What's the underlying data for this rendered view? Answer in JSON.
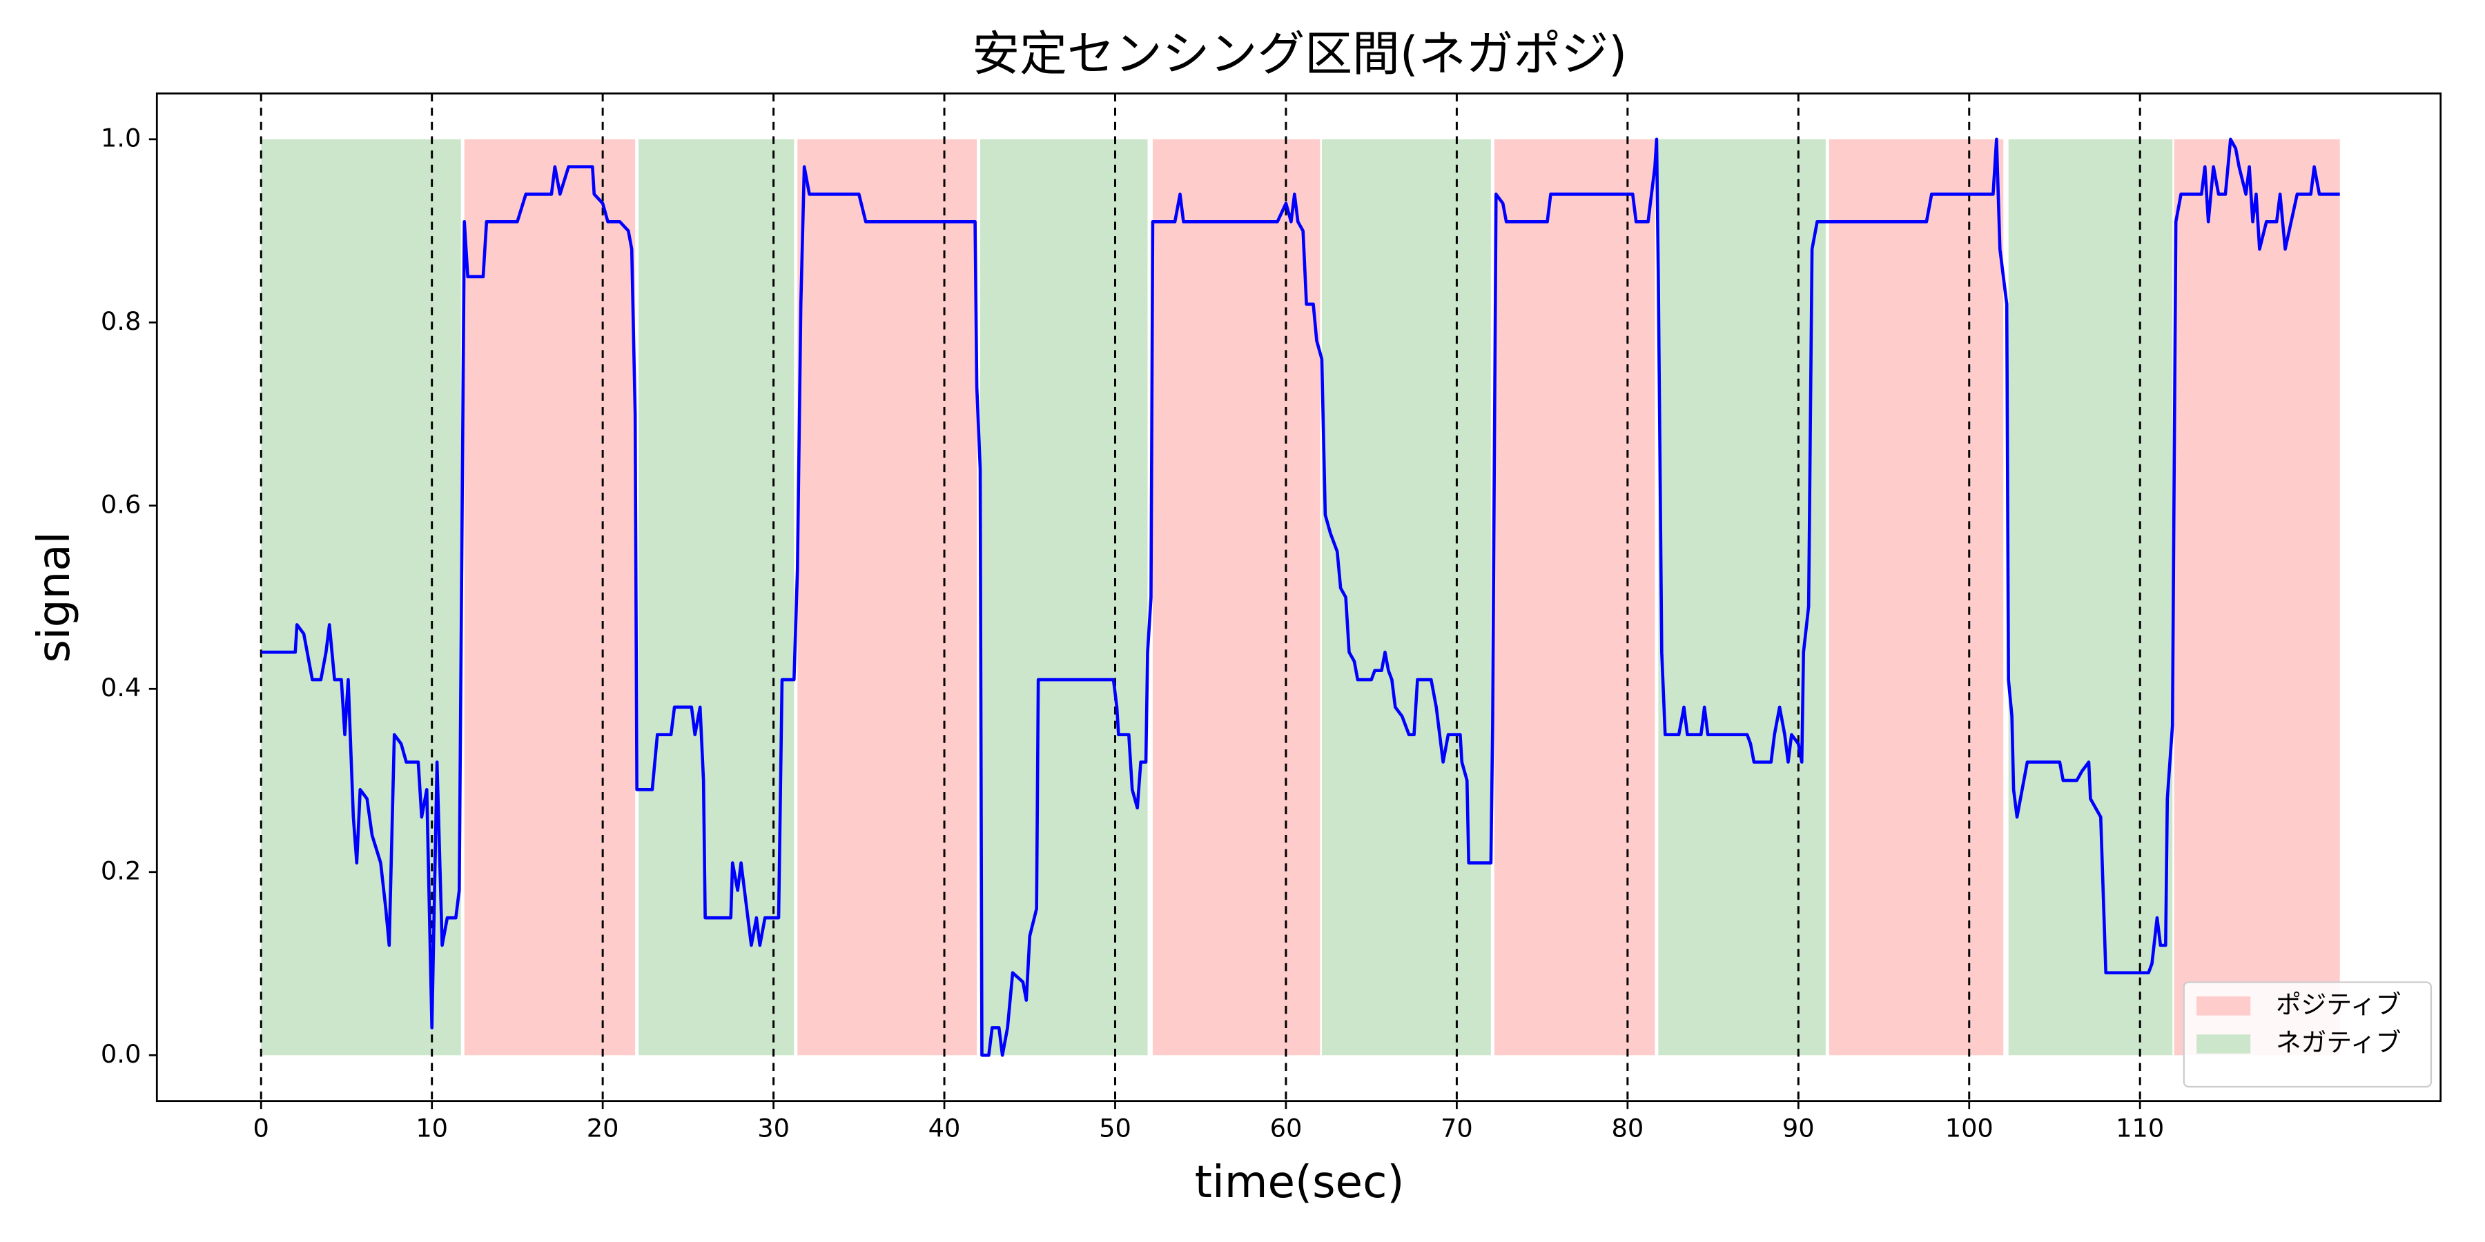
{
  "chart_data": {
    "type": "line",
    "title": "安定センシング区間(ネガポジ)",
    "xlabel": "time(sec)",
    "ylabel": "signal",
    "color": "#0000ff",
    "xlim": [
      -6.1,
      127.6
    ],
    "ylim": [
      -0.05,
      1.05
    ],
    "xticks": [
      0,
      10,
      20,
      30,
      40,
      50,
      60,
      70,
      80,
      90,
      100,
      110
    ],
    "yticks": [
      {
        "value": 0,
        "label": "0.0"
      },
      0.2,
      0.4,
      0.6,
      0.8,
      {
        "value": 1,
        "label": "1.0"
      }
    ],
    "vlines": [
      0,
      10,
      20,
      30,
      40,
      50,
      60,
      70,
      80,
      90,
      100,
      110
    ],
    "span_y": [
      0,
      1
    ],
    "spans": [
      {
        "name": "ポジティブ",
        "color": "#ffcccc",
        "ranges": [
          [
            11.9,
            21.9
          ],
          [
            31.4,
            41.9
          ],
          [
            52.2,
            62.0
          ],
          [
            72.2,
            81.6
          ],
          [
            91.8,
            102.0
          ],
          [
            112.0,
            121.7
          ]
        ]
      },
      {
        "name": "ネガティブ",
        "color": "#cce6cc",
        "ranges": [
          [
            0,
            11.7
          ],
          [
            22.1,
            31.2
          ],
          [
            42.1,
            51.9
          ],
          [
            62.1,
            72.0
          ],
          [
            81.8,
            91.6
          ],
          [
            102.3,
            111.9
          ]
        ]
      }
    ],
    "legend": "lower right",
    "x": [
      0,
      2,
      2.1,
      2.5,
      3,
      3.5,
      3.8,
      4,
      4.3,
      4.7,
      4.9,
      5.1,
      5.4,
      5.6,
      5.8,
      6.2,
      6.5,
      7,
      7.3,
      7.5,
      7.8,
      8.2,
      8.5,
      9.2,
      9.4,
      9.7,
      10,
      10.3,
      10.6,
      10.9,
      11.4,
      11.6,
      11.9,
      12.1,
      13,
      13.2,
      15,
      15.5,
      17,
      17.2,
      17.5,
      18,
      19.4,
      19.5,
      20,
      20.3,
      21,
      21.5,
      21.7,
      21.9,
      22,
      22.9,
      23.2,
      24,
      24.2,
      25.2,
      25.4,
      25.7,
      25.9,
      26,
      27.5,
      27.6,
      27.9,
      28.1,
      28.5,
      28.7,
      29,
      29.2,
      29.5,
      30.3,
      30.5,
      31.2,
      31.4,
      31.6,
      31.8,
      32.1,
      35,
      35.4,
      41.8,
      41.9,
      42.1,
      42.2,
      42.6,
      42.8,
      43.2,
      43.4,
      43.7,
      44,
      44.6,
      44.8,
      45,
      45.4,
      45.5,
      49.9,
      50.1,
      50.2,
      50.8,
      51,
      51.3,
      51.5,
      51.8,
      51.9,
      52.1,
      52.2,
      53.5,
      53.8,
      54,
      59.5,
      60,
      60.3,
      60.5,
      60.7,
      61,
      61.2,
      61.6,
      61.8,
      62.1,
      62.3,
      62.6,
      63,
      63.2,
      63.5,
      63.7,
      64,
      64.2,
      65,
      65.2,
      65.6,
      65.8,
      66,
      66.2,
      66.4,
      66.8,
      67.2,
      67.5,
      67.7,
      68.5,
      68.8,
      69.2,
      69.5,
      70.2,
      70.3,
      70.6,
      70.7,
      72,
      72.1,
      72.3,
      72.7,
      72.9,
      75.3,
      75.5,
      80.3,
      80.5,
      81.2,
      81.4,
      81.6,
      81.7,
      81.8,
      82,
      82.2,
      83,
      83.3,
      83.5,
      84.3,
      84.5,
      84.7,
      87,
      87.2,
      87.4,
      88.4,
      88.6,
      88.9,
      89.2,
      89.4,
      89.6,
      90,
      90.2,
      90.3,
      90.6,
      90.8,
      91.1,
      97.5,
      97.8,
      101.4,
      101.6,
      101.8,
      102.2,
      102.3,
      102.5,
      102.6,
      102.8,
      103.1,
      103.4,
      105.3,
      105.5,
      106.3,
      106.6,
      107,
      107.1,
      107.7,
      108,
      110.5,
      110.7,
      111,
      111.2,
      111.5,
      111.6,
      111.9,
      112.1,
      112.4,
      113.6,
      113.8,
      114,
      114.3,
      114.6,
      115,
      115.3,
      115.6,
      115.8,
      116.2,
      116.4,
      116.6,
      116.8,
      117,
      117.4,
      118,
      118.2,
      118.5,
      119.2,
      120,
      120.2,
      120.5,
      121.7
    ],
    "values": [
      0.44,
      0.44,
      0.47,
      0.46,
      0.41,
      0.41,
      0.44,
      0.47,
      0.41,
      0.41,
      0.35,
      0.41,
      0.26,
      0.21,
      0.29,
      0.28,
      0.24,
      0.21,
      0.16,
      0.12,
      0.35,
      0.34,
      0.32,
      0.32,
      0.26,
      0.29,
      0.03,
      0.32,
      0.12,
      0.15,
      0.15,
      0.18,
      0.91,
      0.85,
      0.85,
      0.91,
      0.91,
      0.94,
      0.94,
      0.97,
      0.94,
      0.97,
      0.97,
      0.94,
      0.93,
      0.91,
      0.91,
      0.9,
      0.88,
      0.7,
      0.29,
      0.29,
      0.35,
      0.35,
      0.38,
      0.38,
      0.35,
      0.38,
      0.3,
      0.15,
      0.15,
      0.21,
      0.18,
      0.21,
      0.15,
      0.12,
      0.15,
      0.12,
      0.15,
      0.15,
      0.41,
      0.41,
      0.53,
      0.82,
      0.97,
      0.94,
      0.94,
      0.91,
      0.91,
      0.73,
      0.64,
      0,
      0,
      0.03,
      0.03,
      0,
      0.03,
      0.09,
      0.08,
      0.06,
      0.13,
      0.16,
      0.41,
      0.41,
      0.38,
      0.35,
      0.35,
      0.29,
      0.27,
      0.32,
      0.32,
      0.44,
      0.5,
      0.91,
      0.91,
      0.94,
      0.91,
      0.91,
      0.93,
      0.91,
      0.94,
      0.91,
      0.9,
      0.82,
      0.82,
      0.78,
      0.76,
      0.59,
      0.57,
      0.55,
      0.51,
      0.5,
      0.44,
      0.43,
      0.41,
      0.41,
      0.42,
      0.42,
      0.44,
      0.42,
      0.41,
      0.38,
      0.37,
      0.35,
      0.35,
      0.41,
      0.41,
      0.38,
      0.32,
      0.35,
      0.35,
      0.32,
      0.3,
      0.21,
      0.21,
      0.36,
      0.94,
      0.93,
      0.91,
      0.91,
      0.94,
      0.94,
      0.91,
      0.91,
      0.94,
      0.97,
      1,
      0.85,
      0.44,
      0.35,
      0.35,
      0.38,
      0.35,
      0.35,
      0.38,
      0.35,
      0.35,
      0.34,
      0.32,
      0.32,
      0.35,
      0.38,
      0.35,
      0.32,
      0.35,
      0.34,
      0.32,
      0.44,
      0.49,
      0.88,
      0.91,
      0.91,
      0.94,
      0.94,
      1,
      0.88,
      0.82,
      0.41,
      0.37,
      0.29,
      0.26,
      0.29,
      0.32,
      0.32,
      0.3,
      0.3,
      0.31,
      0.32,
      0.28,
      0.26,
      0.09,
      0.09,
      0.1,
      0.15,
      0.12,
      0.12,
      0.28,
      0.36,
      0.91,
      0.94,
      0.94,
      0.97,
      0.91,
      0.97,
      0.94,
      0.94,
      1,
      0.99,
      0.97,
      0.94,
      0.97,
      0.91,
      0.94,
      0.88,
      0.91,
      0.91,
      0.94,
      0.88,
      0.94,
      0.94,
      0.97,
      0.94,
      0.94
    ]
  }
}
